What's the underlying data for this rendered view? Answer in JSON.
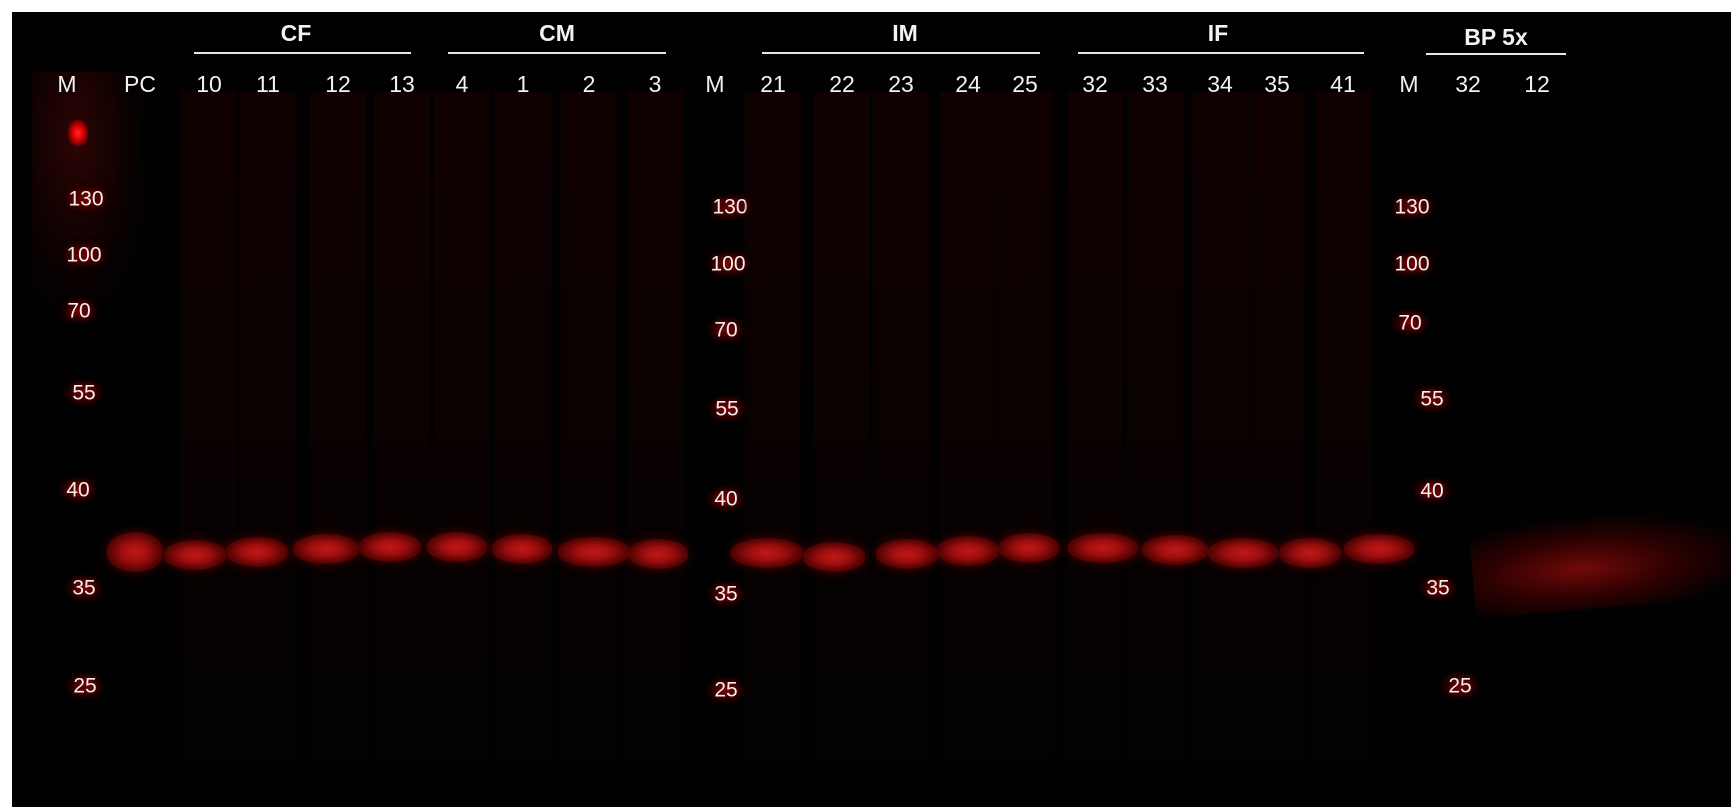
{
  "colors": {
    "background": "#020101",
    "band": "#b01414",
    "text": "#f2f2f2"
  },
  "groups": [
    {
      "name": "CF",
      "lanes": [
        "10",
        "11",
        "12",
        "13"
      ]
    },
    {
      "name": "CM",
      "lanes": [
        "4",
        "1",
        "2",
        "3"
      ]
    },
    {
      "name": "IM",
      "lanes": [
        "21",
        "22",
        "23",
        "24",
        "25"
      ]
    },
    {
      "name": "IF",
      "lanes": [
        "32",
        "33",
        "34",
        "35",
        "41"
      ]
    },
    {
      "name": "BP 5x",
      "lanes": [
        "32",
        "12"
      ]
    }
  ],
  "marker_label": "M",
  "positive_control_label": "PC",
  "ladder_kda": [
    "130",
    "100",
    "70",
    "55",
    "40",
    "35",
    "25"
  ]
}
